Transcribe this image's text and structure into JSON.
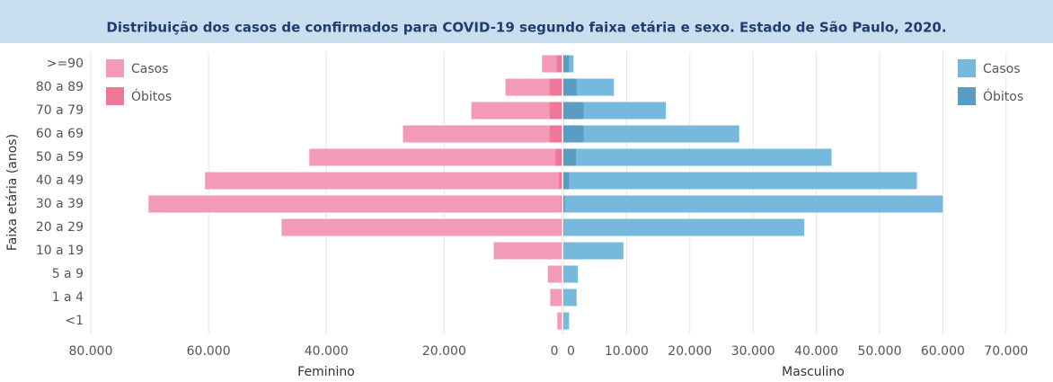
{
  "chart_data": [
    {
      "type": "bar",
      "orientation": "horizontal",
      "direction": "left",
      "title": "Distribuição dos casos de confirmados para COVID-19 segundo faixa etária e sexo. Estado de São Paulo, 2020.",
      "ylabel": "Faixa etária (anos)",
      "xlabel": "Feminino",
      "categories": [
        ">=90",
        "80 a 89",
        "70 a 79",
        "60 a 69",
        "50 a 59",
        "40 a 49",
        "30 a 39",
        "20 a 29",
        "10 a 19",
        "5 a 9",
        "1 a 4",
        "<1"
      ],
      "xlim": [
        0,
        80000
      ],
      "xticks": [
        {
          "value": 80000,
          "label": "80.000"
        },
        {
          "value": 60000,
          "label": "60.000"
        },
        {
          "value": 40000,
          "label": "40.000"
        },
        {
          "value": 20000,
          "label": "20.000"
        },
        0
      ],
      "grid": true,
      "legend": "upper left",
      "series": [
        {
          "name": "Casos",
          "color": "#f49ab9",
          "values": [
            3400,
            9600,
            15400,
            27000,
            42900,
            60600,
            70200,
            47600,
            11600,
            2400,
            2000,
            800
          ]
        },
        {
          "name": "Óbitos",
          "color": "#ef7899",
          "values": [
            900,
            2100,
            2100,
            2100,
            1100,
            500,
            150,
            50,
            20,
            10,
            10,
            20
          ]
        }
      ]
    },
    {
      "type": "bar",
      "orientation": "horizontal",
      "direction": "right",
      "xlabel": "Masculino",
      "xlim": [
        0,
        75000
      ],
      "xticks": [
        0,
        {
          "value": 10000,
          "label": "10.000"
        },
        {
          "value": 20000,
          "label": "20.000"
        },
        {
          "value": 30000,
          "label": "30.000"
        },
        {
          "value": 40000,
          "label": "40.000"
        },
        {
          "value": 50000,
          "label": "50.000"
        },
        {
          "value": 60000,
          "label": "60.000"
        },
        {
          "value": 70000,
          "label": "70.000"
        }
      ],
      "grid": true,
      "legend": "upper right",
      "series": [
        {
          "name": "Casos",
          "color": "#77b8dd",
          "values": [
            1600,
            8000,
            16200,
            27800,
            42400,
            55900,
            60000,
            38100,
            9500,
            2300,
            2100,
            900
          ]
        },
        {
          "name": "Óbitos",
          "color": "#5b9cc2",
          "values": [
            900,
            2100,
            3200,
            3200,
            2000,
            900,
            200,
            50,
            20,
            10,
            10,
            20
          ]
        }
      ]
    }
  ]
}
